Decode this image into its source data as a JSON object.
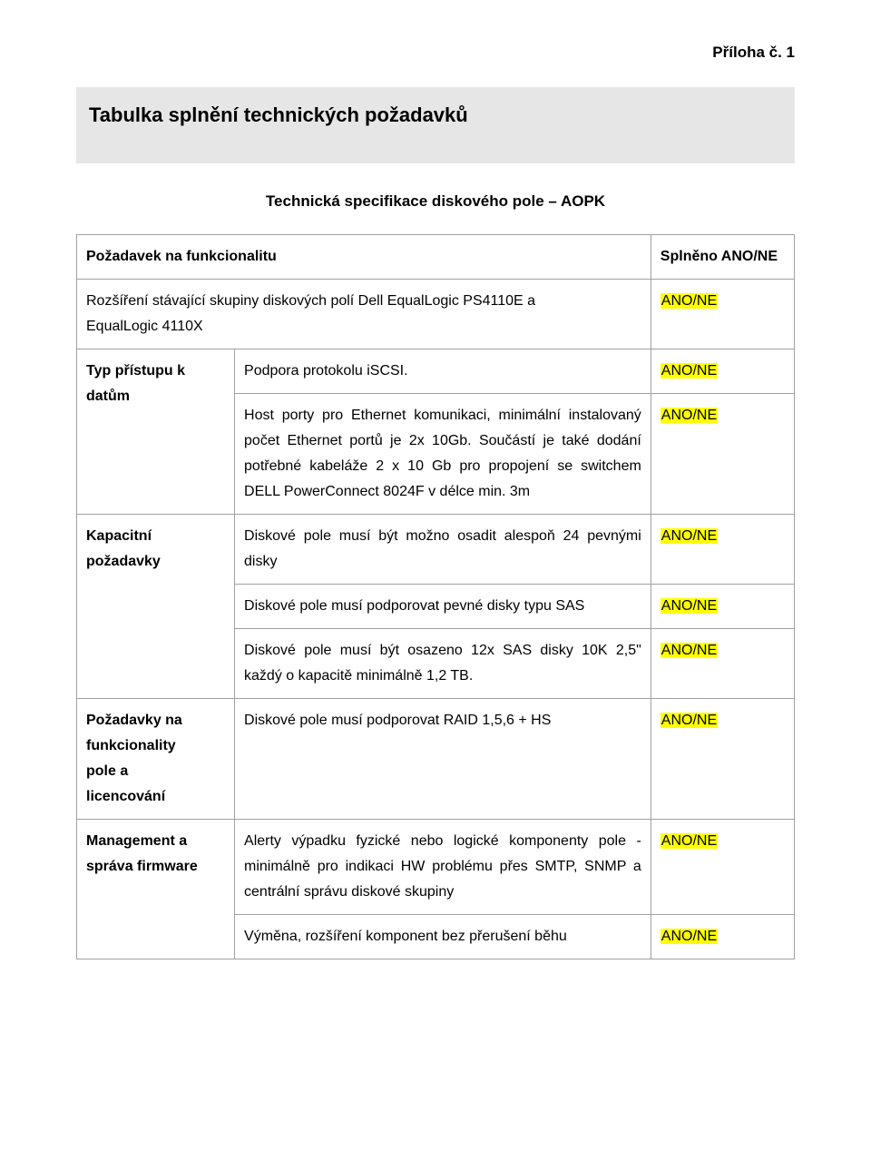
{
  "page": {
    "header_label": "Příloha č. 1",
    "title": "Tabulka splnění technických požadavků",
    "subtitle": "Technická specifikace diskového pole – AOPK"
  },
  "colors": {
    "highlight_bg": "#ffff00",
    "title_bg": "#e6e6e6",
    "border": "#a0a0a0",
    "text": "#000000",
    "page_bg": "#ffffff"
  },
  "table": {
    "header": {
      "col1": "Požadavek na funkcionalitu",
      "col2": "",
      "col3": "Splněno ANO/NE"
    },
    "row_ext": {
      "label_line1": "Rozšíření stávající skupiny diskových polí Dell EqualLogic PS4110E a",
      "label_line2": "EqualLogic 4110X",
      "status": "ANO/NE"
    },
    "row_access": {
      "label_l1": "Typ přístupu k",
      "label_l2": "datům",
      "body1": "Podpora protokolu iSCSI.",
      "body2": "Host porty pro Ethernet komunikaci, minimální instalovaný počet Ethernet portů je 2x 10Gb. Součástí je také dodání potřebné kabeláže 2 x 10 Gb pro propojení se switchem DELL PowerConnect 8024F v délce min. 3m",
      "status1": "ANO/NE",
      "status2": "ANO/NE"
    },
    "row_cap": {
      "label_l1": "Kapacitní",
      "label_l2": "požadavky",
      "body1": "Diskové pole musí být možno osadit alespoň 24 pevnými disky",
      "body2": "Diskové pole musí podporovat pevné disky typu SAS",
      "body3": "Diskové pole musí být osazeno 12x SAS disky 10K 2,5\" každý o kapacitě minimálně 1,2 TB.",
      "status1": "ANO/NE",
      "status2": "ANO/NE",
      "status3": "ANO/NE"
    },
    "row_func": {
      "label_l1": "Požadavky na",
      "label_l2": "funkcionality",
      "label_l3": "pole a",
      "label_l4": "licencování",
      "body1": "Diskové pole musí podporovat RAID 1,5,6 + HS",
      "status1": "ANO/NE"
    },
    "row_mgmt": {
      "label_l1": "Management a",
      "label_l2": "správa firmware",
      "body1": "Alerty výpadku fyzické nebo logické komponenty pole - minimálně pro indikaci HW problému přes SMTP, SNMP a centrální správu diskové skupiny",
      "body2": "Výměna, rozšíření komponent bez přerušení běhu",
      "status1": "ANO/NE",
      "status2": "ANO/NE"
    }
  }
}
